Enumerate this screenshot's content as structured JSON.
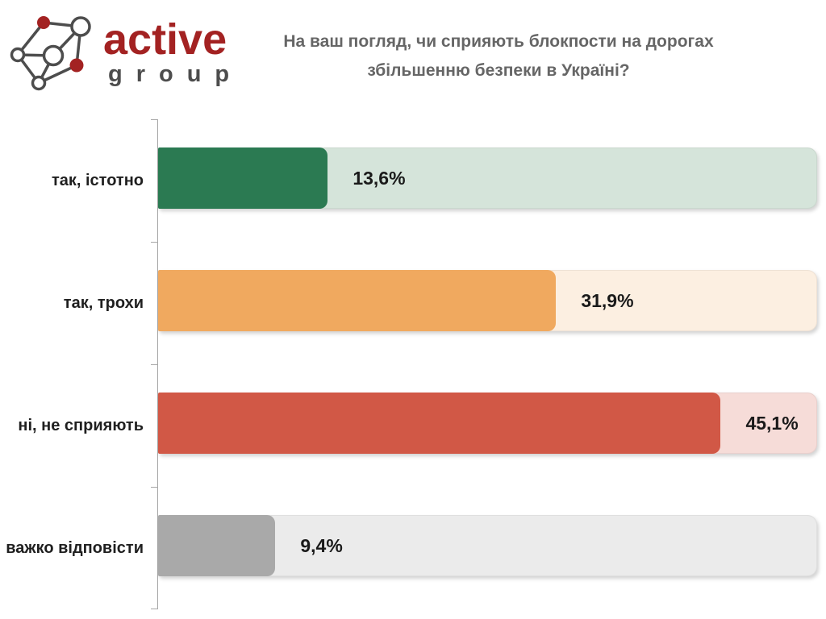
{
  "header": {
    "logo": {
      "brand": "active",
      "sub": "group",
      "brand_color": "#a32222",
      "sub_color": "#4d4d4d",
      "node_red": "#a32222",
      "node_stroke": "#4d4d4d"
    },
    "title_line1": "На ваш погляд, чи сприяють блокпости на дорогах",
    "title_line2": "збільшенню безпеки в Україні?"
  },
  "chart_data": {
    "type": "bar",
    "orientation": "horizontal",
    "title": "На ваш погляд, чи сприяють блокпости на дорогах збільшенню безпеки в Україні?",
    "categories": [
      "так, істотно",
      "так, трохи",
      "ні, не сприяють",
      "важко відповісти"
    ],
    "values": [
      13.6,
      31.9,
      45.1,
      9.4
    ],
    "value_labels": [
      "13,6%",
      "31,9%",
      "45,1%",
      "9,4%"
    ],
    "bar_colors": [
      "#2b7a52",
      "#f0a95f",
      "#d15846",
      "#a9a9a9"
    ],
    "track_colors": [
      "#d5e4da",
      "#fcefe1",
      "#f6dcd8",
      "#ebebeb"
    ],
    "xlabel": "",
    "ylabel": "",
    "xlim": [
      0,
      52.7
    ],
    "grid": false,
    "legend": false,
    "axis_color": "#a6a6a6"
  }
}
